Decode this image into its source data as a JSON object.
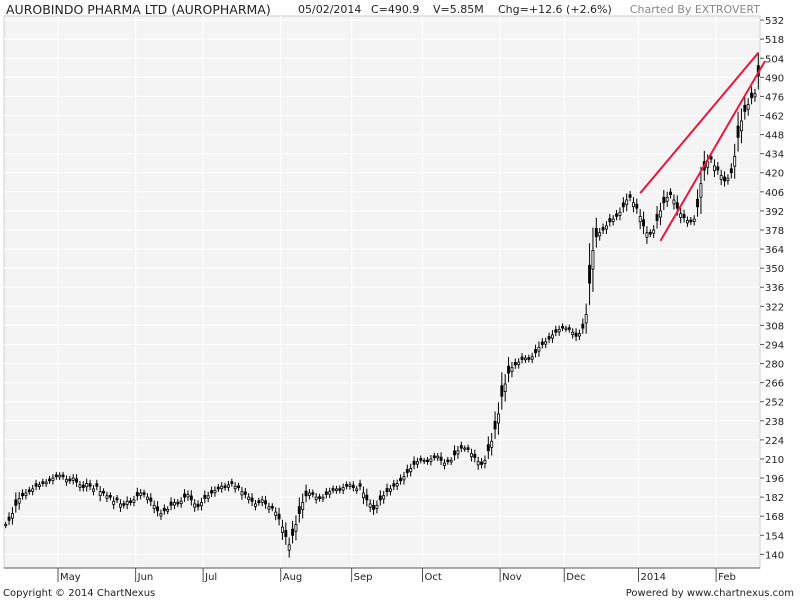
{
  "header": {
    "title": "AUROBINDO PHARMA LTD (AUROPHARMA)",
    "date": "05/02/2014",
    "close": "C=490.9",
    "volume": "V=5.85M",
    "change": "Chg=+12.6 (+2.6%)",
    "credit": "Charted By EXTROVERT"
  },
  "footer": {
    "copyright": "Copyright © 2014 ChartNexus",
    "powered": "Powered by www.chartnexus.com"
  },
  "colors": {
    "background": "#ffffff",
    "plot_background": "#f4f4f4",
    "candle": "#000000",
    "trendline": "#e8193c",
    "grid": "#ffffff"
  },
  "chart_data": {
    "type": "candlestick",
    "y_ticks": [
      140,
      154,
      168,
      182,
      196,
      210,
      224,
      238,
      252,
      266,
      280,
      294,
      308,
      322,
      336,
      350,
      364,
      378,
      392,
      406,
      420,
      434,
      448,
      462,
      476,
      490,
      504,
      518,
      532
    ],
    "ylim": [
      130,
      535
    ],
    "x_ticks": [
      {
        "label": "May",
        "index": 16
      },
      {
        "label": "Jun",
        "index": 39
      },
      {
        "label": "Jul",
        "index": 59
      },
      {
        "label": "Aug",
        "index": 82
      },
      {
        "label": "Sep",
        "index": 103
      },
      {
        "label": "Oct",
        "index": 124
      },
      {
        "label": "Nov",
        "index": 147
      },
      {
        "label": "Dec",
        "index": 166
      },
      {
        "label": "2014",
        "index": 188
      },
      {
        "label": "Feb",
        "index": 211
      }
    ],
    "close_series": [
      162,
      165,
      170,
      176,
      181,
      183,
      185,
      186,
      188,
      190,
      191,
      192,
      193,
      194,
      196,
      197,
      198,
      197,
      195,
      194,
      196,
      193,
      191,
      189,
      192,
      190,
      188,
      190,
      186,
      185,
      183,
      182,
      179,
      180,
      177,
      176,
      179,
      178,
      180,
      183,
      185,
      184,
      182,
      179,
      176,
      172,
      170,
      172,
      173,
      176,
      178,
      177,
      179,
      182,
      184,
      180,
      177,
      175,
      178,
      181,
      183,
      185,
      187,
      188,
      190,
      189,
      191,
      192,
      190,
      189,
      186,
      184,
      182,
      179,
      177,
      178,
      180,
      177,
      175,
      174,
      171,
      166,
      160,
      153,
      147,
      154,
      162,
      170,
      178,
      183,
      185,
      184,
      182,
      181,
      182,
      184,
      186,
      187,
      188,
      187,
      189,
      190,
      191,
      189,
      188,
      190,
      185,
      180,
      177,
      173,
      176,
      180,
      183,
      186,
      188,
      190,
      192,
      194,
      197,
      200,
      203,
      206,
      208,
      209,
      209,
      208,
      210,
      211,
      212,
      209,
      207,
      208,
      209,
      213,
      216,
      218,
      218,
      217,
      214,
      211,
      208,
      206,
      209,
      216,
      223,
      232,
      243,
      256,
      265,
      273,
      277,
      279,
      281,
      283,
      284,
      283,
      285,
      288,
      292,
      294,
      296,
      298,
      301,
      303,
      305,
      306,
      306,
      305,
      303,
      300,
      302,
      306,
      316,
      339,
      363,
      373,
      376,
      378,
      381,
      384,
      386,
      388,
      391,
      395,
      400,
      402,
      398,
      394,
      388,
      381,
      376,
      375,
      378,
      385,
      392,
      398,
      402,
      404,
      400,
      394,
      390,
      387,
      385,
      384,
      386,
      395,
      412,
      422,
      428,
      430,
      425,
      422,
      418,
      414,
      416,
      420,
      432,
      446,
      458,
      465,
      470,
      475,
      478,
      490.9
    ],
    "candle_direction": "even-index up (hollow), odd-index down (filled)",
    "trendlines": [
      {
        "from": {
          "index": 188,
          "price": 405
        },
        "to": {
          "index": 223,
          "price": 508
        }
      },
      {
        "from": {
          "index": 194,
          "price": 370
        },
        "to": {
          "index": 225,
          "price": 502
        }
      }
    ]
  }
}
